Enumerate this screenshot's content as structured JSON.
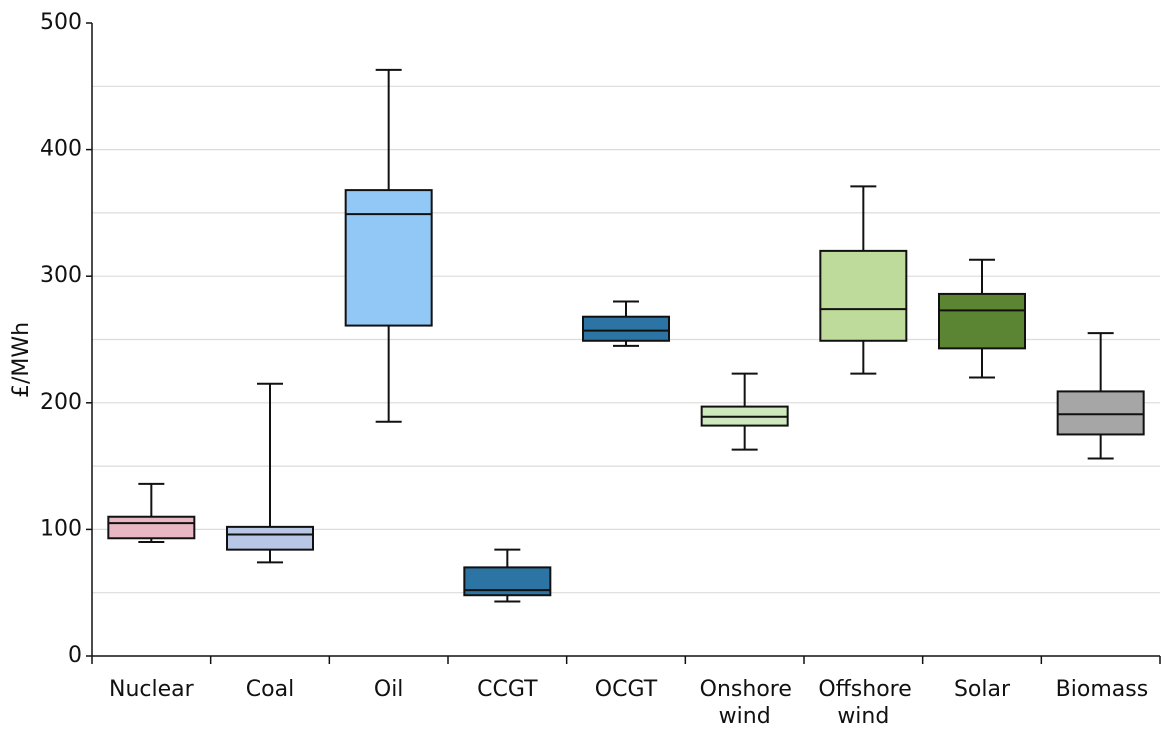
{
  "chart_data": {
    "type": "box",
    "y_label": "£/MWh",
    "categories": [
      "Nuclear",
      "Coal",
      "Oil",
      "CCGT",
      "OCGT",
      "Onshore wind",
      "Offshore wind",
      "Solar",
      "Biomass"
    ],
    "min": [
      90,
      74,
      185,
      43,
      245,
      163,
      223,
      220,
      156
    ],
    "q1": [
      93,
      84,
      261,
      48,
      249,
      182,
      249,
      243,
      175
    ],
    "median": [
      105,
      96,
      349,
      52,
      257,
      189,
      274,
      273,
      191
    ],
    "q3": [
      110,
      102,
      368,
      70,
      268,
      197,
      320,
      286,
      209
    ],
    "max": [
      136,
      215,
      463,
      84,
      280,
      223,
      371,
      313,
      255
    ],
    "colors": [
      "#e8b7c3",
      "#b8c7e6",
      "#92c8f6",
      "#2c74a3",
      "#2c74a3",
      "#cde9bd",
      "#bedb9b",
      "#5b8533",
      "#a6a6a6"
    ],
    "ylim": [
      0,
      500
    ],
    "yticks": [
      0,
      100,
      200,
      300,
      400,
      500
    ],
    "grid": [
      50,
      100,
      150,
      200,
      250,
      300,
      350,
      400,
      450
    ]
  }
}
